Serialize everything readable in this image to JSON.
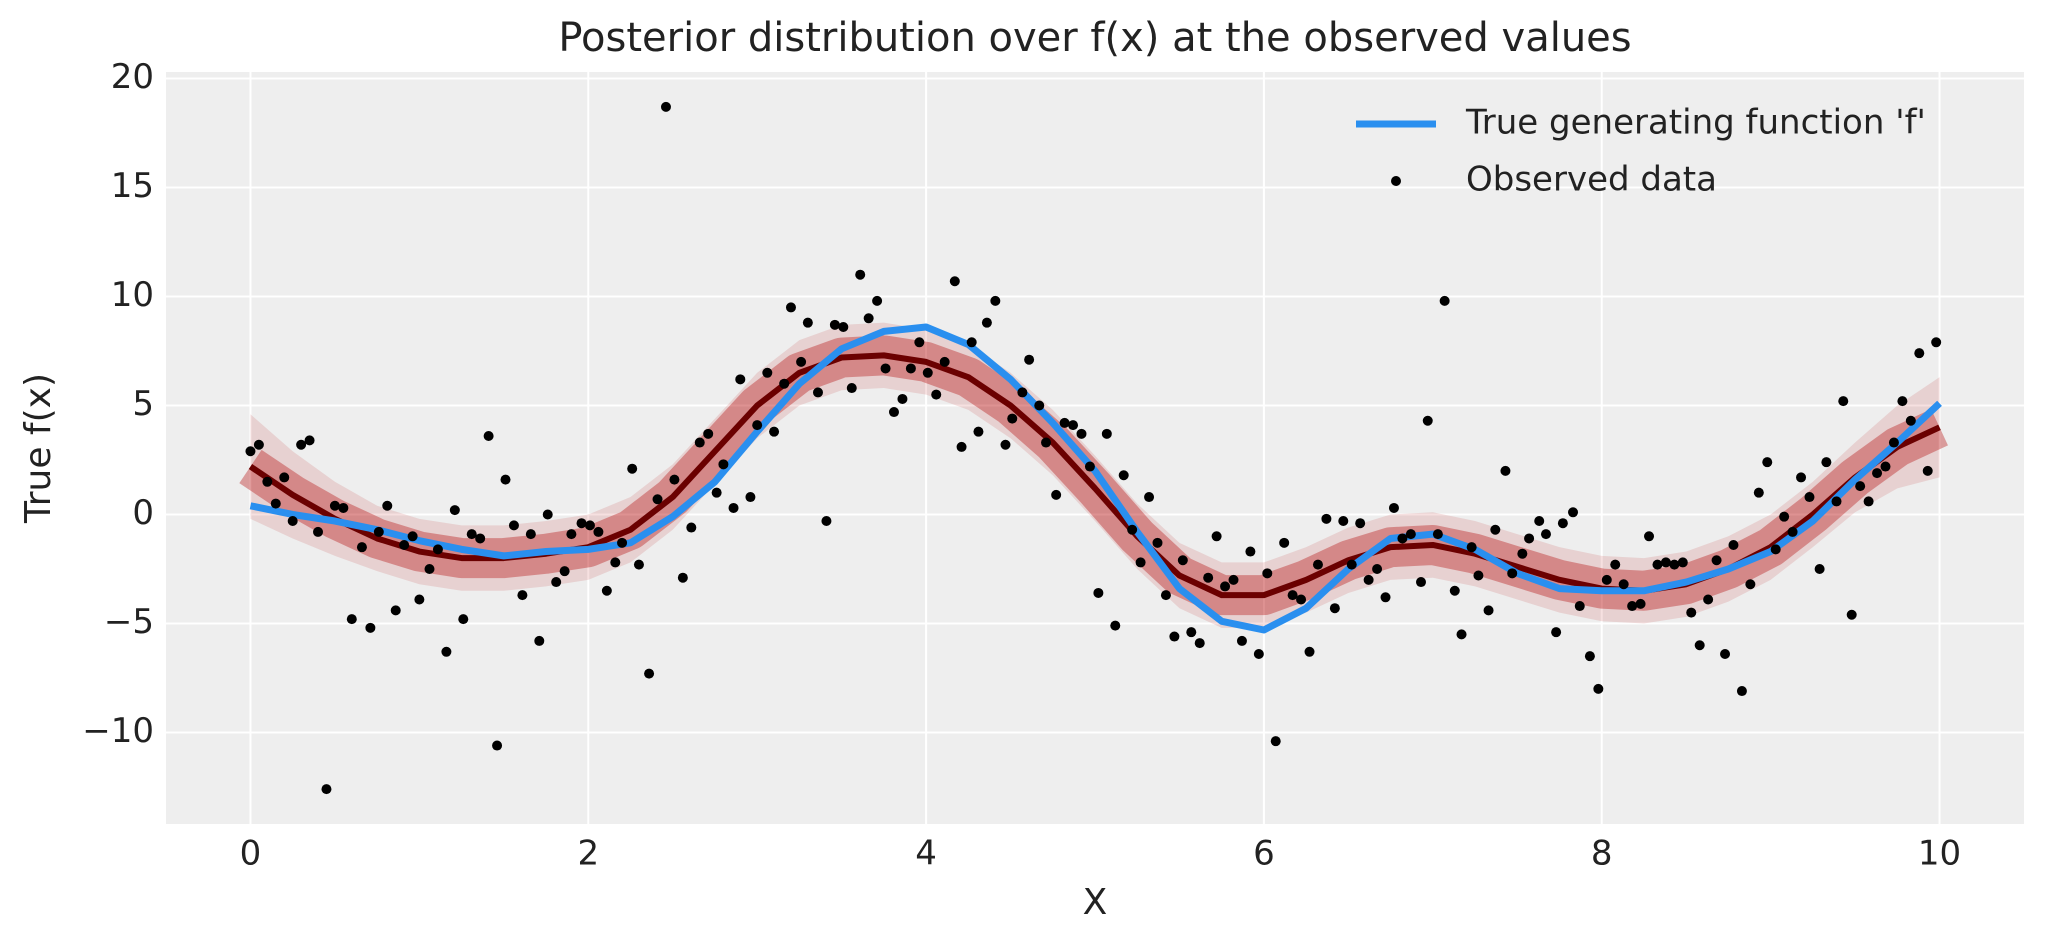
{
  "chart_data": {
    "type": "line",
    "title": "Posterior distribution over f(x) at the observed values",
    "x_label": "X",
    "y_label": "True f(x)",
    "xlim": [
      -0.5,
      10.5
    ],
    "ylim": [
      -14.2,
      20.3
    ],
    "xticks": [
      0,
      2,
      4,
      6,
      8,
      10
    ],
    "yticks": [
      {
        "value": -10,
        "label": "−10"
      },
      {
        "value": -5,
        "label": "−5"
      },
      0,
      5,
      10,
      15,
      20
    ],
    "grid": true,
    "legend": "upper right",
    "posterior": {
      "color": "#b30000",
      "x": [
        0,
        0.25,
        0.5,
        0.75,
        1,
        1.25,
        1.5,
        1.75,
        2,
        2.25,
        2.5,
        2.75,
        3,
        3.25,
        3.5,
        3.75,
        4,
        4.25,
        4.5,
        4.75,
        5,
        5.25,
        5.5,
        5.75,
        6,
        6.25,
        6.5,
        6.75,
        7,
        7.25,
        7.5,
        7.75,
        8,
        8.25,
        8.5,
        8.75,
        9,
        9.25,
        9.5,
        9.75,
        10
      ],
      "lower": [
        -0.2,
        -1.1,
        -1.9,
        -2.6,
        -3.2,
        -3.5,
        -3.5,
        -3.3,
        -3.0,
        -2.2,
        -0.7,
        1.4,
        3.5,
        5.0,
        5.7,
        5.8,
        5.5,
        4.8,
        3.5,
        1.8,
        -0.3,
        -2.5,
        -4.3,
        -5.2,
        -5.2,
        -4.5,
        -3.6,
        -3.0,
        -2.9,
        -3.3,
        -3.9,
        -4.5,
        -4.9,
        -5.0,
        -4.7,
        -4.0,
        -3.0,
        -1.5,
        0.1,
        1.2,
        1.7
      ],
      "mid": [
        2.2,
        0.9,
        -0.2,
        -1.1,
        -1.7,
        -2.0,
        -2.0,
        -1.8,
        -1.5,
        -0.7,
        0.8,
        2.9,
        5.0,
        6.5,
        7.2,
        7.3,
        7.0,
        6.3,
        5.0,
        3.3,
        1.2,
        -1.0,
        -2.8,
        -3.7,
        -3.7,
        -3.0,
        -2.1,
        -1.5,
        -1.4,
        -1.8,
        -2.4,
        -3.0,
        -3.4,
        -3.5,
        -3.2,
        -2.5,
        -1.5,
        0.0,
        1.7,
        3.1,
        4.0
      ],
      "upper": [
        4.6,
        2.9,
        1.5,
        0.4,
        -0.2,
        -0.5,
        -0.5,
        -0.3,
        0.0,
        0.8,
        2.3,
        4.4,
        6.5,
        8.0,
        8.7,
        8.8,
        8.5,
        7.8,
        6.5,
        4.8,
        2.7,
        0.5,
        -1.3,
        -2.2,
        -2.2,
        -1.5,
        -0.6,
        0.0,
        0.1,
        -0.3,
        -0.9,
        -1.5,
        -1.9,
        -2.0,
        -1.7,
        -1.0,
        0.0,
        1.5,
        3.3,
        5.0,
        6.3
      ]
    },
    "series": [
      {
        "name": "True generating function 'f'",
        "color": "#2a8fef",
        "kind": "line",
        "x": [
          0,
          0.25,
          0.5,
          0.75,
          1,
          1.25,
          1.5,
          1.75,
          2,
          2.25,
          2.5,
          2.75,
          3,
          3.25,
          3.5,
          3.75,
          4,
          4.25,
          4.5,
          4.75,
          5,
          5.25,
          5.5,
          5.75,
          6,
          6.25,
          6.5,
          6.75,
          7,
          7.25,
          7.5,
          7.75,
          8,
          8.25,
          8.5,
          8.75,
          9,
          9.25,
          9.5,
          9.75,
          10
        ],
        "values": [
          0.4,
          0.0,
          -0.3,
          -0.7,
          -1.2,
          -1.6,
          -1.9,
          -1.7,
          -1.6,
          -1.3,
          -0.1,
          1.5,
          3.8,
          6.0,
          7.6,
          8.4,
          8.6,
          7.8,
          6.2,
          4.2,
          2.0,
          -0.8,
          -3.4,
          -4.9,
          -5.3,
          -4.3,
          -2.5,
          -1.1,
          -0.9,
          -1.6,
          -2.7,
          -3.4,
          -3.5,
          -3.5,
          -3.1,
          -2.5,
          -1.7,
          -0.3,
          1.6,
          3.3,
          5.1
        ]
      },
      {
        "name": "Observed data",
        "color": "#000000",
        "kind": "scatter",
        "x": [
          0,
          0.05,
          0.1,
          0.15,
          0.2,
          0.25,
          0.3,
          0.35,
          0.4,
          0.45,
          0.5,
          0.55,
          0.6,
          0.66,
          0.71,
          0.76,
          0.81,
          0.86,
          0.91,
          0.96,
          1.0,
          1.06,
          1.11,
          1.16,
          1.21,
          1.26,
          1.31,
          1.36,
          1.41,
          1.46,
          1.51,
          1.56,
          1.61,
          1.66,
          1.71,
          1.76,
          1.81,
          1.86,
          1.9,
          1.96,
          2.01,
          2.06,
          2.11,
          2.16,
          2.2,
          2.26,
          2.3,
          2.36,
          2.41,
          2.46,
          2.51,
          2.56,
          2.61,
          2.66,
          2.71,
          2.76,
          2.8,
          2.86,
          2.9,
          2.96,
          3.0,
          3.06,
          3.1,
          3.16,
          3.2,
          3.26,
          3.3,
          3.36,
          3.41,
          3.46,
          3.51,
          3.56,
          3.61,
          3.66,
          3.71,
          3.76,
          3.81,
          3.86,
          3.91,
          3.96,
          4.01,
          4.06,
          4.11,
          4.17,
          4.21,
          4.27,
          4.31,
          4.36,
          4.41,
          4.47,
          4.51,
          4.57,
          4.61,
          4.67,
          4.71,
          4.77,
          4.82,
          4.87,
          4.92,
          4.97,
          5.02,
          5.07,
          5.12,
          5.17,
          5.22,
          5.27,
          5.32,
          5.37,
          5.42,
          5.47,
          5.52,
          5.57,
          5.62,
          5.67,
          5.72,
          5.77,
          5.82,
          5.87,
          5.92,
          5.97,
          6.02,
          6.07,
          6.12,
          6.17,
          6.22,
          6.27,
          6.32,
          6.37,
          6.42,
          6.47,
          6.52,
          6.57,
          6.62,
          6.67,
          6.72,
          6.77,
          6.82,
          6.87,
          6.93,
          6.97,
          7.03,
          7.07,
          7.13,
          7.17,
          7.23,
          7.27,
          7.33,
          7.37,
          7.43,
          7.47,
          7.53,
          7.57,
          7.63,
          7.67,
          7.73,
          7.77,
          7.83,
          7.87,
          7.93,
          7.98,
          8.03,
          8.08,
          8.13,
          8.18,
          8.23,
          8.28,
          8.33,
          8.38,
          8.43,
          8.48,
          8.53,
          8.58,
          8.63,
          8.68,
          8.73,
          8.78,
          8.83,
          8.88,
          8.93,
          8.98,
          9.03,
          9.08,
          9.13,
          9.18,
          9.23,
          9.29,
          9.33,
          9.39,
          9.43,
          9.48,
          9.53,
          9.58,
          9.63,
          9.68,
          9.73,
          9.78,
          9.83,
          9.88,
          9.93,
          9.98
        ],
        "values": [
          2.9,
          3.2,
          1.5,
          0.5,
          1.7,
          -0.3,
          3.2,
          3.4,
          -0.8,
          -12.6,
          0.4,
          0.3,
          -4.8,
          -1.5,
          -5.2,
          -0.8,
          0.4,
          -4.4,
          -1.4,
          -1.0,
          -3.9,
          -2.5,
          -1.6,
          -6.3,
          0.2,
          -4.8,
          -0.9,
          -1.1,
          3.6,
          -10.6,
          1.6,
          -0.5,
          -3.7,
          -0.9,
          -5.8,
          0.0,
          -3.1,
          -2.6,
          -0.9,
          -0.4,
          -0.5,
          -0.8,
          -3.5,
          -2.2,
          -1.3,
          2.1,
          -2.3,
          -7.3,
          0.7,
          18.7,
          1.6,
          -2.9,
          -0.6,
          3.3,
          3.7,
          1.0,
          2.3,
          0.3,
          6.2,
          0.8,
          4.1,
          6.5,
          3.8,
          6.0,
          9.5,
          7.0,
          8.8,
          5.6,
          -0.3,
          8.7,
          8.6,
          5.8,
          11.0,
          9.0,
          9.8,
          6.7,
          4.7,
          5.3,
          6.7,
          7.9,
          6.5,
          5.5,
          7.0,
          10.7,
          3.1,
          7.9,
          3.8,
          8.8,
          9.8,
          3.2,
          4.4,
          5.6,
          7.1,
          5.0,
          3.3,
          0.9,
          4.2,
          4.1,
          3.7,
          2.2,
          -3.6,
          3.7,
          -5.1,
          1.8,
          -0.7,
          -2.2,
          0.8,
          -1.3,
          -3.7,
          -5.6,
          -2.1,
          -5.4,
          -5.9,
          -2.9,
          -1.0,
          -3.3,
          -3.0,
          -5.8,
          -1.7,
          -6.4,
          -2.7,
          -10.4,
          -1.3,
          -3.7,
          -3.9,
          -6.3,
          -2.3,
          -0.2,
          -4.3,
          -0.3,
          -2.3,
          -0.4,
          -3.0,
          -2.5,
          -3.8,
          0.3,
          -1.1,
          -0.9,
          -3.1,
          4.3,
          -0.9,
          9.8,
          -3.5,
          -5.5,
          -1.5,
          -2.8,
          -4.4,
          -0.7,
          2.0,
          -2.7,
          -1.8,
          -1.1,
          -0.3,
          -0.9,
          -5.4,
          -0.4,
          0.1,
          -4.2,
          -6.5,
          -8.0,
          -3.0,
          -2.3,
          -3.2,
          -4.2,
          -4.1,
          -1.0,
          -2.3,
          -2.2,
          -2.3,
          -2.2,
          -4.5,
          -6.0,
          -3.9,
          -2.1,
          -6.4,
          -1.4,
          -8.1,
          -3.2,
          1.0,
          2.4,
          -1.6,
          -0.1,
          -0.8,
          1.7,
          0.8,
          -2.5,
          2.4,
          0.6,
          5.2,
          -4.6,
          1.3,
          0.6,
          1.9,
          2.2,
          3.3,
          5.2,
          4.3,
          7.4,
          2.0,
          7.9
        ]
      }
    ]
  }
}
